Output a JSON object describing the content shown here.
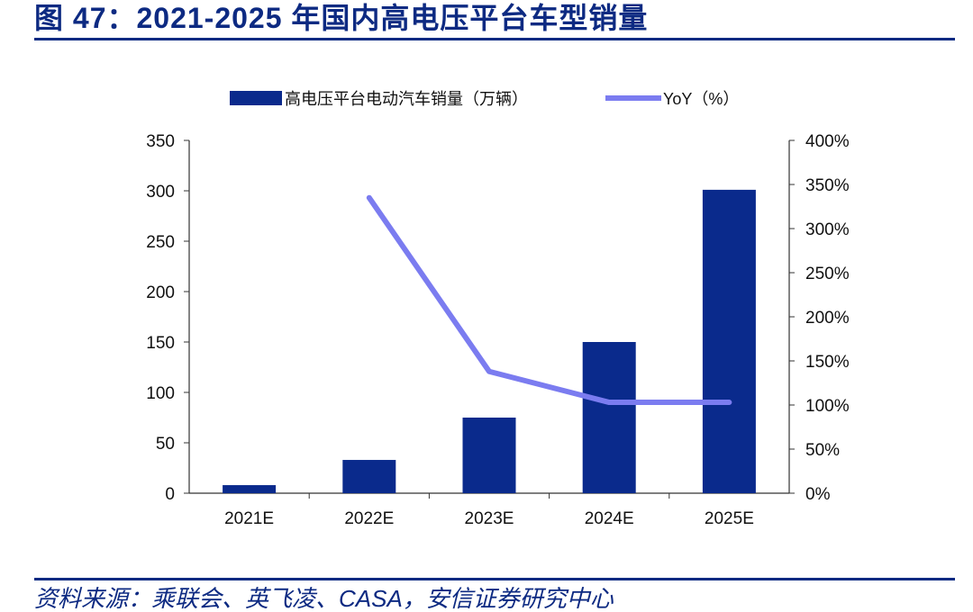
{
  "figure": {
    "title": "图 47：2021-2025 年国内高电压平台车型销量",
    "source": "资料来源：乘联会、英飞凌、CASA，安信证券研究中心"
  },
  "colors": {
    "bar": "#0a2a8c",
    "line": "#7b7cf0",
    "axis": "#333333",
    "title": "#0d2a82"
  },
  "chart_data": {
    "type": "bar",
    "categories": [
      "2021E",
      "2022E",
      "2023E",
      "2024E",
      "2025E"
    ],
    "series": [
      {
        "name": "高电压平台电动汽车销量（万辆）",
        "type": "bar",
        "axis": "left",
        "values": [
          8,
          33,
          75,
          150,
          301
        ]
      },
      {
        "name": "YoY（%）",
        "type": "line",
        "axis": "right",
        "values": [
          null,
          335,
          138,
          103,
          103
        ]
      }
    ],
    "left_axis": {
      "ylim": [
        0,
        350
      ],
      "ticks": [
        "0",
        "50",
        "100",
        "150",
        "200",
        "250",
        "300",
        "350"
      ]
    },
    "right_axis": {
      "ylim": [
        0,
        400
      ],
      "ticks": [
        "0%",
        "50%",
        "100%",
        "150%",
        "200%",
        "250%",
        "300%",
        "350%",
        "400%"
      ]
    },
    "legend_position": "top",
    "grid": false
  }
}
